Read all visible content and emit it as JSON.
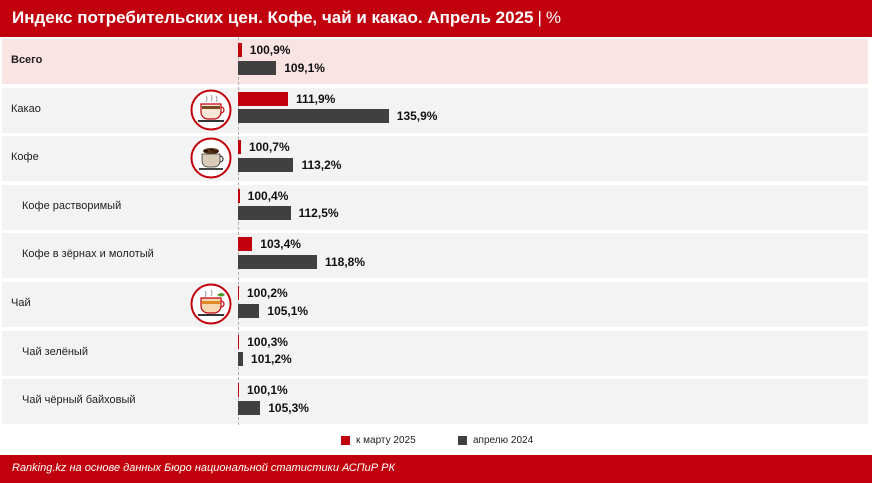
{
  "header": {
    "title": "Индекс потребительских цен. Кофе, чай и какао. Апрель 2025",
    "separator": "|",
    "unit": "%"
  },
  "footer": {
    "source": "Ranking.kz на основе данных Бюро национальной статистики АСПиР РК"
  },
  "colors": {
    "brand_red": "#c0000c",
    "series_march": "#c0000c",
    "series_april": "#404040",
    "highlight_row": "#f9e3e3",
    "row_bg": "#f3f3f3"
  },
  "chart_data": {
    "type": "bar",
    "orientation": "horizontal",
    "categories": [
      "Всего",
      "Какао",
      "Кофе",
      "Кофе растворимый",
      "Кофе в зёрнах и молотый",
      "Чай",
      "Чай зелёный",
      "Чай чёрный байховый"
    ],
    "series": [
      {
        "name": "к марту 2025",
        "values": [
          100.9,
          111.9,
          100.7,
          100.4,
          103.4,
          100.2,
          100.3,
          100.1
        ],
        "labels": [
          "100,9%",
          "111,9%",
          "100,7%",
          "100,4%",
          "103,4%",
          "100,2%",
          "100,3%",
          "100,1%"
        ]
      },
      {
        "name": "апрелю 2024",
        "values": [
          109.1,
          135.9,
          113.2,
          112.5,
          118.8,
          105.1,
          101.2,
          105.3
        ],
        "labels": [
          "109,1%",
          "135,9%",
          "113,2%",
          "112,5%",
          "118,8%",
          "105,1%",
          "101,2%",
          "105,3%"
        ]
      }
    ],
    "icons": [
      "",
      "cocoa-cup-icon",
      "coffee-cup-icon",
      "",
      "",
      "tea-cup-icon",
      "",
      ""
    ],
    "bold_categories": [
      "Всего"
    ],
    "subcategories": [
      "Кофе растворимый",
      "Кофе в зёрнах и молотый",
      "Чай зелёный",
      "Чай чёрный байховый"
    ],
    "xlim": [
      0,
      135.9
    ],
    "legend_position": "bottom",
    "grid": false
  }
}
